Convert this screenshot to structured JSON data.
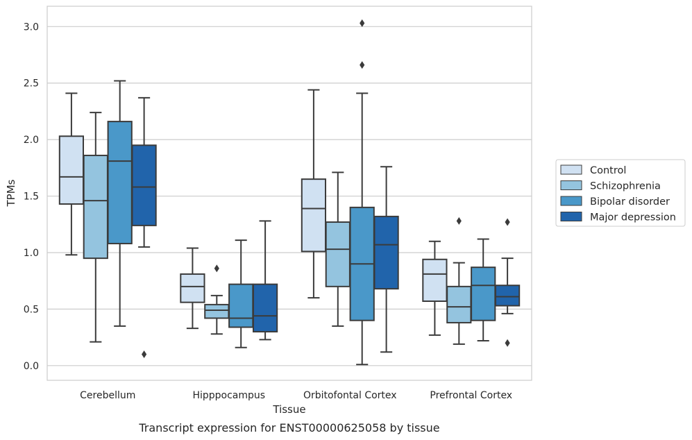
{
  "chart_data": {
    "type": "boxplot",
    "caption": "Transcript expression for ENST00000625058 by tissue",
    "xlabel": "Tissue",
    "ylabel": "TPMs",
    "ylim": [
      -0.13,
      3.18
    ],
    "yticks": [
      "0.0",
      "0.5",
      "1.0",
      "1.5",
      "2.0",
      "2.5",
      "3.0"
    ],
    "grid": "horizontal",
    "legend_position": "right",
    "categories": [
      "Cerebellum",
      "Hipppocampus",
      "Orbitofontal Cortex",
      "Prefrontal Cortex"
    ],
    "series": [
      {
        "name": "Control",
        "color": "#d0e1f2",
        "boxes": [
          {
            "whislo": 0.98,
            "q1": 1.43,
            "med": 1.67,
            "q3": 2.03,
            "whishi": 2.41,
            "fliers": []
          },
          {
            "whislo": 0.33,
            "q1": 0.56,
            "med": 0.7,
            "q3": 0.81,
            "whishi": 1.04,
            "fliers": []
          },
          {
            "whislo": 0.6,
            "q1": 1.01,
            "med": 1.39,
            "q3": 1.65,
            "whishi": 2.44,
            "fliers": []
          },
          {
            "whislo": 0.27,
            "q1": 0.57,
            "med": 0.81,
            "q3": 0.94,
            "whishi": 1.1,
            "fliers": []
          }
        ]
      },
      {
        "name": "Schizophrenia",
        "color": "#94c4df",
        "boxes": [
          {
            "whislo": 0.21,
            "q1": 0.95,
            "med": 1.46,
            "q3": 1.86,
            "whishi": 2.24,
            "fliers": []
          },
          {
            "whislo": 0.28,
            "q1": 0.42,
            "med": 0.49,
            "q3": 0.54,
            "whishi": 0.62,
            "fliers": [
              0.86
            ]
          },
          {
            "whislo": 0.35,
            "q1": 0.7,
            "med": 1.03,
            "q3": 1.27,
            "whishi": 1.71,
            "fliers": []
          },
          {
            "whislo": 0.19,
            "q1": 0.38,
            "med": 0.52,
            "q3": 0.7,
            "whishi": 0.91,
            "fliers": [
              1.28
            ]
          }
        ]
      },
      {
        "name": "Bipolar disorder",
        "color": "#4a98c9",
        "boxes": [
          {
            "whislo": 0.35,
            "q1": 1.08,
            "med": 1.81,
            "q3": 2.16,
            "whishi": 2.52,
            "fliers": []
          },
          {
            "whislo": 0.16,
            "q1": 0.34,
            "med": 0.42,
            "q3": 0.72,
            "whishi": 1.11,
            "fliers": []
          },
          {
            "whislo": 0.01,
            "q1": 0.4,
            "med": 0.9,
            "q3": 1.4,
            "whishi": 2.41,
            "fliers": [
              3.03,
              2.66
            ]
          },
          {
            "whislo": 0.22,
            "q1": 0.4,
            "med": 0.71,
            "q3": 0.87,
            "whishi": 1.12,
            "fliers": []
          }
        ]
      },
      {
        "name": "Major depression",
        "color": "#2164ab",
        "boxes": [
          {
            "whislo": 1.05,
            "q1": 1.24,
            "med": 1.58,
            "q3": 1.95,
            "whishi": 2.37,
            "fliers": [
              0.1
            ]
          },
          {
            "whislo": 0.23,
            "q1": 0.3,
            "med": 0.44,
            "q3": 0.72,
            "whishi": 1.28,
            "fliers": []
          },
          {
            "whislo": 0.12,
            "q1": 0.68,
            "med": 1.07,
            "q3": 1.32,
            "whishi": 1.76,
            "fliers": []
          },
          {
            "whislo": 0.46,
            "q1": 0.53,
            "med": 0.61,
            "q3": 0.71,
            "whishi": 0.95,
            "fliers": [
              1.27,
              0.2
            ]
          }
        ]
      }
    ]
  },
  "colors": {
    "grid": "#cccccc",
    "frame": "#cccccc",
    "box_edge": "#3b3b3b"
  }
}
